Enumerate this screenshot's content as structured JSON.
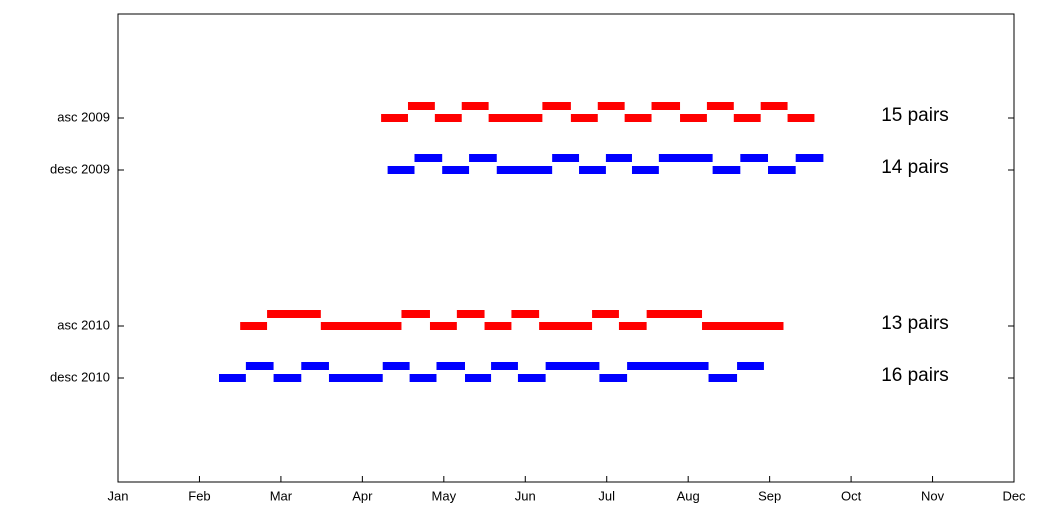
{
  "chart_data": {
    "type": "timeline",
    "xlim": [
      0,
      11
    ],
    "xticks": [
      {
        "value": 0,
        "label": "Jan"
      },
      {
        "value": 1,
        "label": "Feb"
      },
      {
        "value": 2,
        "label": "Mar"
      },
      {
        "value": 3,
        "label": "Apr"
      },
      {
        "value": 4,
        "label": "May"
      },
      {
        "value": 5,
        "label": "Jun"
      },
      {
        "value": 6,
        "label": "Jul"
      },
      {
        "value": 7,
        "label": "Aug"
      },
      {
        "value": 8,
        "label": "Sep"
      },
      {
        "value": 9,
        "label": "Oct"
      },
      {
        "value": 10,
        "label": "Nov"
      },
      {
        "value": 11,
        "label": "Dec"
      }
    ],
    "ylim": [
      0,
      9
    ],
    "yticks": [
      {
        "value": 7,
        "label": "asc 2009"
      },
      {
        "value": 6,
        "label": "desc 2009"
      },
      {
        "value": 3,
        "label": "asc 2010"
      },
      {
        "value": 2,
        "label": "desc 2010"
      }
    ],
    "series": [
      {
        "color": "#ff0000",
        "annotation": "15 pairs",
        "starts": [
          3.23,
          3.56,
          3.89,
          4.22,
          4.55,
          5.21,
          5.56,
          5.89,
          6.22,
          6.55,
          6.9,
          7.23,
          7.56,
          7.89,
          8.22
        ],
        "ends": [
          3.56,
          3.89,
          4.22,
          4.55,
          5.21,
          5.56,
          5.89,
          6.22,
          6.55,
          6.9,
          7.23,
          7.56,
          7.89,
          8.22,
          8.55
        ]
      },
      {
        "color": "#0000ff",
        "annotation": "14 pairs",
        "starts": [
          3.31,
          3.64,
          3.98,
          4.31,
          4.65,
          5.33,
          5.66,
          5.99,
          6.31,
          6.64,
          7.3,
          7.64,
          7.98,
          8.32
        ],
        "ends": [
          3.64,
          3.98,
          4.31,
          4.65,
          5.33,
          5.66,
          5.99,
          6.31,
          6.64,
          7.3,
          7.64,
          7.98,
          8.32,
          8.66
        ]
      },
      {
        "color": "#ff0000",
        "annotation": "13 pairs",
        "starts": [
          1.5,
          1.83,
          2.49,
          3.48,
          3.83,
          4.16,
          4.5,
          4.83,
          5.17,
          5.82,
          6.15,
          6.49,
          7.17
        ],
        "ends": [
          1.83,
          2.49,
          3.48,
          3.83,
          4.16,
          4.5,
          4.83,
          5.17,
          5.82,
          6.15,
          6.49,
          7.17,
          8.17
        ]
      },
      {
        "color": "#0000ff",
        "annotation": "16 pairs",
        "starts": [
          1.24,
          1.57,
          1.91,
          2.25,
          2.59,
          3.25,
          3.58,
          3.91,
          4.26,
          4.58,
          4.91,
          5.25,
          5.91,
          6.25,
          7.25,
          7.6
        ],
        "ends": [
          1.57,
          1.91,
          2.25,
          2.59,
          3.25,
          3.58,
          3.91,
          4.26,
          4.58,
          4.91,
          5.25,
          5.91,
          6.25,
          7.25,
          7.6,
          7.93
        ]
      }
    ]
  }
}
